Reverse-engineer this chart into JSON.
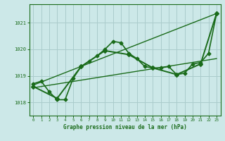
{
  "bg_color": "#cce8e8",
  "grid_color": "#aacccc",
  "line_color": "#1a6b1a",
  "title": "Graphe pression niveau de la mer (hPa)",
  "xlim": [
    -0.5,
    23.5
  ],
  "ylim": [
    1017.5,
    1021.7
  ],
  "yticks": [
    1018,
    1019,
    1020,
    1021
  ],
  "series": [
    {
      "x": [
        0,
        1,
        2,
        3,
        4,
        5,
        6,
        7,
        8,
        9,
        10,
        11,
        12,
        13,
        14,
        15,
        16,
        17,
        18,
        19,
        20,
        21,
        22,
        23
      ],
      "y": [
        1018.7,
        1018.8,
        1018.4,
        1018.1,
        1018.1,
        1018.9,
        1019.35,
        1019.55,
        1019.75,
        1020.0,
        1020.3,
        1020.25,
        1019.85,
        1019.65,
        1019.35,
        1019.3,
        1019.3,
        1019.35,
        1019.05,
        1019.1,
        1019.45,
        1019.5,
        1019.85,
        1021.35
      ],
      "lw": 1.2,
      "marker": "D",
      "ms": 2.5,
      "zorder": 5
    },
    {
      "x": [
        0,
        23
      ],
      "y": [
        1018.55,
        1019.65
      ],
      "lw": 1.0,
      "marker": null,
      "ms": 0,
      "zorder": 3
    },
    {
      "x": [
        0,
        23
      ],
      "y": [
        1018.65,
        1021.35
      ],
      "lw": 1.0,
      "marker": null,
      "ms": 0,
      "zorder": 3
    },
    {
      "x": [
        0,
        3,
        6,
        9,
        12,
        15,
        18,
        21,
        23
      ],
      "y": [
        1018.6,
        1018.15,
        1019.35,
        1019.95,
        1019.8,
        1019.3,
        1019.05,
        1019.45,
        1021.35
      ],
      "lw": 1.4,
      "marker": "D",
      "ms": 3.0,
      "zorder": 4
    }
  ]
}
